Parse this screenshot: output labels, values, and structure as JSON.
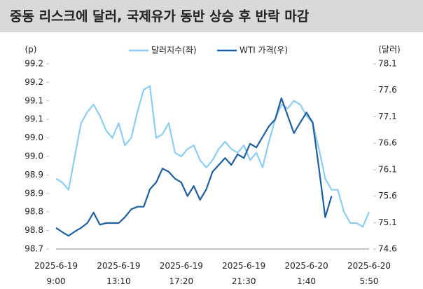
{
  "chart_data": {
    "type": "line",
    "title": "중동 리스크에 달러, 국제유가 동반 상승 후 반락 마감",
    "y_label": "(p)",
    "y2_label": "(달러)",
    "categories": [
      "2025-6-19\n9:00",
      null,
      null,
      null,
      null,
      null,
      null,
      null,
      null,
      null,
      "2025-6-19\n13:10",
      null,
      null,
      null,
      null,
      null,
      null,
      null,
      null,
      null,
      "2025-6-19\n17:20",
      null,
      null,
      null,
      null,
      null,
      null,
      null,
      null,
      null,
      "2025-6-19\n21:30",
      null,
      null,
      null,
      null,
      null,
      null,
      null,
      null,
      null,
      "2025-6-20\n1:40",
      null,
      null,
      null,
      null,
      null,
      null,
      null,
      null,
      null,
      "2025-6-20\n5:50"
    ],
    "ylim": [
      98.7,
      99.2
    ],
    "yticks": [
      98.7,
      {
        "value": 98.75,
        "label": "98.8"
      },
      98.8,
      {
        "value": 98.85,
        "label": "98.9"
      },
      98.9,
      {
        "value": 98.95,
        "label": "99.0"
      },
      {
        "value": 99,
        "label": "99.0"
      },
      {
        "value": 99.05,
        "label": "99.1"
      },
      99.1,
      {
        "value": 99.15,
        "label": "99.2"
      },
      99.2
    ],
    "y2lim": [
      74.6,
      78.1
    ],
    "y2ticks": [
      74.6,
      75.1,
      75.6,
      76.1,
      76.6,
      77.1,
      77.6,
      78.1
    ],
    "series": [
      {
        "name": "달러지수(좌)",
        "color": "#8ecdf2",
        "axis": "y",
        "values": [
          98.89,
          98.88,
          98.86,
          98.95,
          99.04,
          99.07,
          99.09,
          99.06,
          99.02,
          99.0,
          99.04,
          98.98,
          99.0,
          99.07,
          99.13,
          99.14,
          99.0,
          99.01,
          99.04,
          98.96,
          98.95,
          98.97,
          98.98,
          98.94,
          98.92,
          98.94,
          98.97,
          98.99,
          98.97,
          98.96,
          98.98,
          98.94,
          98.96,
          98.92,
          98.99,
          99.05,
          99.09,
          99.08,
          99.1,
          99.09,
          99.06,
          99.04,
          98.97,
          98.89,
          98.86,
          98.86,
          98.8,
          98.77,
          98.77,
          98.76,
          98.8
        ]
      },
      {
        "name": "WTI 가격(우)",
        "color": "#1f5f9e",
        "axis": "y2",
        "values": [
          75.0,
          74.92,
          74.85,
          74.93,
          75.0,
          75.09,
          75.29,
          75.06,
          75.09,
          75.09,
          75.09,
          75.2,
          75.35,
          75.4,
          75.4,
          75.73,
          75.86,
          76.12,
          76.06,
          75.93,
          75.86,
          75.6,
          75.79,
          75.53,
          75.73,
          76.06,
          76.19,
          76.32,
          76.19,
          76.39,
          76.32,
          76.59,
          76.52,
          76.72,
          76.92,
          77.05,
          77.45,
          77.12,
          76.79,
          76.99,
          77.18,
          76.99,
          76.12,
          75.2,
          75.6,
          null,
          null,
          null,
          null,
          null,
          null
        ]
      }
    ]
  }
}
